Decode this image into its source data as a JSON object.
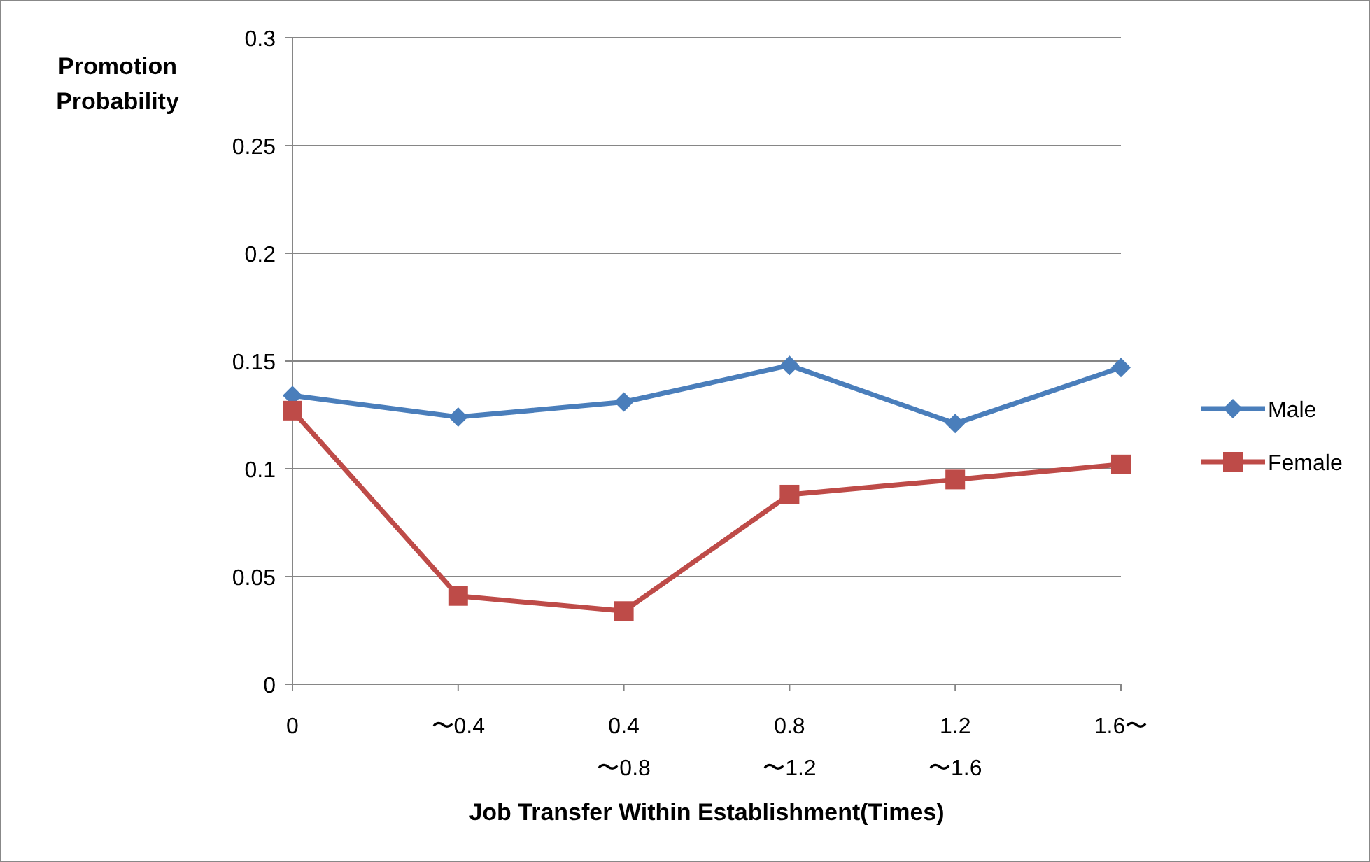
{
  "chart_data": {
    "type": "line",
    "ylabel": "Promotion\nProbability",
    "xlabel": "Job Transfer Within Establishment(Times)",
    "categories": [
      "0",
      "〜0.4",
      "0.4\n〜0.8",
      "0.8\n〜1.2",
      "1.2\n〜1.6",
      "1.6〜"
    ],
    "series": [
      {
        "name": "Male",
        "color": "#4a7ebb",
        "marker": "diamond",
        "values": [
          0.134,
          0.124,
          0.131,
          0.148,
          0.121,
          0.147
        ]
      },
      {
        "name": "Female",
        "color": "#be4b48",
        "marker": "square",
        "values": [
          0.127,
          0.041,
          0.034,
          0.088,
          0.095,
          0.102
        ]
      }
    ],
    "ylim": [
      0,
      0.3
    ],
    "yticks": [
      0,
      0.05,
      0.1,
      0.15,
      0.2,
      0.25,
      0.3
    ],
    "grid": "y",
    "legend": "right"
  }
}
